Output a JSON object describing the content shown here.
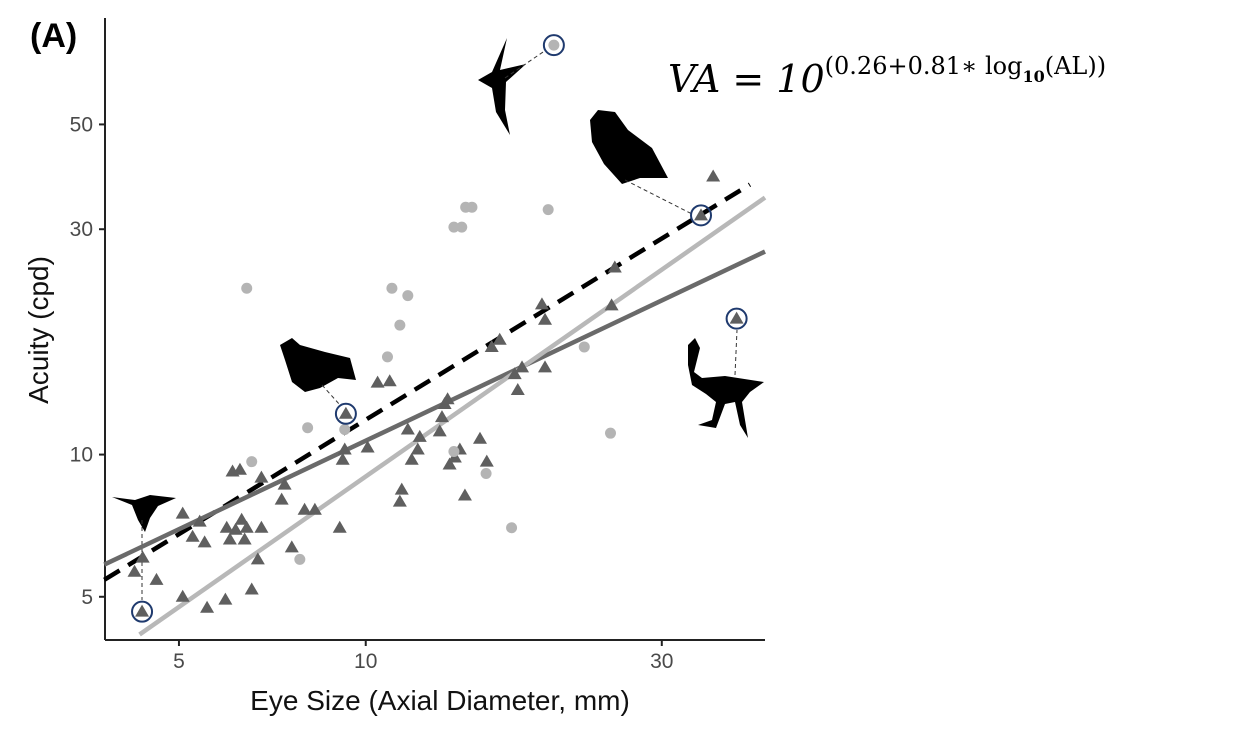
{
  "chart_data": {
    "type": "scatter",
    "panel_label": "(A)",
    "x_label": "Eye Size (Axial Diameter, mm)",
    "y_label": "Acuity (cpd)",
    "log_x": true,
    "log_y": true,
    "xlim": [
      3.8,
      44
    ],
    "ylim": [
      4.05,
      84
    ],
    "xticks": [
      5,
      10,
      30
    ],
    "yticks": [
      5,
      10,
      30,
      50
    ],
    "annotation": {
      "base": "VA = 10",
      "exponent": "(0.26+0.81∗ log",
      "subscript": "10",
      "tail": "(AL))"
    },
    "series": [
      {
        "marker": "triangle",
        "color": "#5f5f5f",
        "x": [
          4.36,
          4.24,
          4.37,
          4.6,
          5.07,
          5.07,
          5.26,
          5.4,
          5.5,
          5.55,
          5.97,
          5.94,
          6.04,
          6.1,
          6.27,
          6.17,
          6.31,
          6.38,
          6.43,
          6.55,
          6.7,
          6.79,
          6.79,
          7.32,
          7.4,
          7.6,
          7.97,
          8.28,
          9.08,
          9.29,
          9.25,
          9.18,
          10.07,
          10.45,
          10.93,
          11.35,
          11.43,
          11.69,
          11.86,
          12.13,
          12.22,
          13.16,
          13.27,
          13.4,
          13.55,
          13.65,
          13.92,
          14.18,
          14.45,
          15.28,
          15.67,
          15.96,
          16.44,
          17.38,
          17.58,
          17.86,
          19.45,
          19.23,
          19.45,
          24.9,
          25.2,
          34.7,
          36.3,
          39.6
        ],
        "y": [
          4.65,
          5.65,
          6.05,
          5.43,
          7.5,
          5.0,
          6.7,
          7.21,
          6.52,
          4.74,
          7.0,
          4.93,
          6.61,
          9.21,
          9.29,
          6.93,
          7.28,
          6.61,
          7.0,
          5.18,
          6.0,
          8.94,
          7.0,
          8.03,
          8.64,
          6.36,
          7.64,
          7.64,
          7.0,
          12.2,
          10.25,
          9.75,
          10.35,
          14.2,
          14.3,
          7.95,
          8.43,
          11.3,
          9.75,
          10.25,
          10.9,
          11.2,
          12.0,
          12.8,
          13.1,
          9.53,
          9.86,
          10.25,
          8.19,
          10.8,
          9.66,
          16.9,
          17.5,
          14.8,
          13.7,
          15.3,
          15.3,
          20.8,
          19.3,
          20.7,
          24.9,
          32.1,
          38.8,
          19.4
        ]
      },
      {
        "marker": "circle",
        "color": "#b4b4b4",
        "x": [
          6.43,
          6.55,
          7.83,
          8.06,
          9.25,
          10.84,
          11.02,
          11.35,
          11.69,
          13.87,
          13.87,
          14.28,
          14.49,
          14.83,
          15.63,
          17.18,
          19.68,
          20.1,
          22.5,
          24.8
        ],
        "y": [
          22.5,
          9.66,
          6.0,
          11.4,
          11.3,
          16.1,
          22.5,
          18.8,
          21.7,
          10.15,
          30.3,
          30.3,
          33.4,
          33.4,
          9.12,
          7.0,
          33.0,
          73.6,
          16.9,
          11.1
        ]
      }
    ],
    "lines": [
      {
        "color": "#000000",
        "dashed": true,
        "x": [
          3.79,
          41.6
        ],
        "y": [
          5.43,
          37.3
        ]
      },
      {
        "color": "#6a6a6a",
        "dashed": false,
        "x": [
          3.79,
          44
        ],
        "y": [
          5.85,
          26.9
        ]
      },
      {
        "color": "#b8b8b8",
        "dashed": false,
        "x": [
          4.32,
          44
        ],
        "y": [
          4.16,
          35.0
        ]
      }
    ],
    "highlights": {
      "color": "#1f3a6e",
      "x": [
        4.36,
        9.29,
        20.1,
        34.7,
        39.6
      ],
      "y": [
        4.65,
        12.2,
        73.6,
        32.1,
        19.4
      ]
    }
  }
}
